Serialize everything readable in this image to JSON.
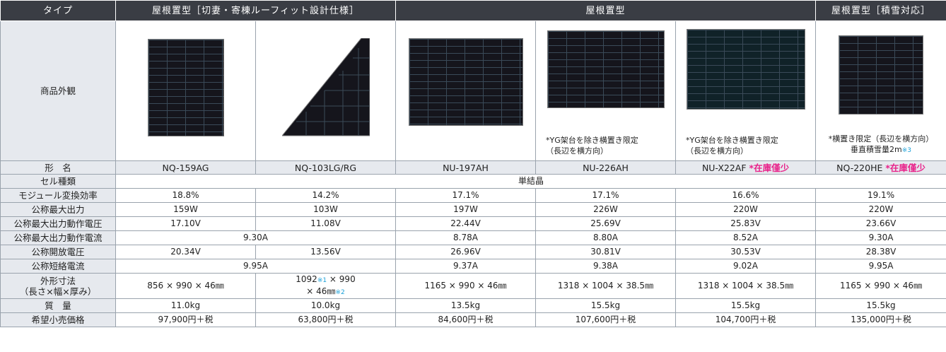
{
  "header": {
    "type_label": "タイプ",
    "group1": "屋根置型［切妻・寄棟ルーフィット設計仕様］",
    "group2": "屋根置型",
    "group3": "屋根置型［積雪対応］"
  },
  "image_row": {
    "label": "商品外観",
    "note_226": [
      "*YG架台を除き横置き限定",
      "（長辺を横方向）"
    ],
    "note_x22": [
      "*YG架台を除き横置き限定",
      "（長辺を横方向）"
    ],
    "note_220": [
      "*横置き限定（長辺を横方向）",
      "垂直積雪量2m",
      "※3"
    ]
  },
  "model_row": {
    "label": "形　名",
    "m1": "NQ-159AG",
    "m2": "NQ-103LG/RG",
    "m3": "NU-197AH",
    "m4": "NU-226AH",
    "m5": "NU-X22AF",
    "m5_badge": "*在庫僅少",
    "m6": "NQ-220HE",
    "m6_badge": "*在庫僅少"
  },
  "rows": {
    "cell": {
      "label": "セル種類",
      "value": "単結晶"
    },
    "eff": {
      "label": "モジュール変換効率",
      "v": [
        "18.8%",
        "14.2%",
        "17.1%",
        "17.1%",
        "16.6%",
        "19.1%"
      ]
    },
    "pmax": {
      "label": "公称最大出力",
      "v": [
        "159W",
        "103W",
        "197W",
        "226W",
        "220W",
        "220W"
      ]
    },
    "vmp": {
      "label": "公称最大出力動作電圧",
      "v": [
        "17.10V",
        "11.08V",
        "22.44V",
        "25.69V",
        "25.83V",
        "23.66V"
      ]
    },
    "imp": {
      "label": "公称最大出力動作電流",
      "merged": "9.30A",
      "v": [
        "8.78A",
        "8.80A",
        "8.52A",
        "9.30A"
      ]
    },
    "voc": {
      "label": "公称開放電圧",
      "v": [
        "20.34V",
        "13.56V",
        "26.96V",
        "30.81V",
        "30.53V",
        "28.38V"
      ]
    },
    "isc": {
      "label": "公称短絡電流",
      "merged": "9.95A",
      "v": [
        "9.37A",
        "9.38A",
        "9.02A",
        "9.95A"
      ]
    },
    "dim": {
      "label1": "外形寸法",
      "label2": "（長さ×幅×厚み）",
      "v1": "856 × 990 × 46㎜",
      "v2a": "1092",
      "v2fn1": "※1",
      "v2b": " × 990",
      "v2c": "× 46㎜",
      "v2fn2": "※2",
      "v3": "1165 × 990 × 46㎜",
      "v4": "1318 × 1004 × 38.5㎜",
      "v5": "1318 × 1004 × 38.5㎜",
      "v6": "1165 × 990 × 46㎜"
    },
    "mass": {
      "label": "質　量",
      "v": [
        "11.0kg",
        "10.0kg",
        "13.5kg",
        "15.5kg",
        "15.5kg",
        "15.5kg"
      ]
    },
    "price": {
      "label": "希望小売価格",
      "v": [
        "97,900円＋税",
        "63,800円＋税",
        "84,600円＋税",
        "107,600円＋税",
        "104,700円＋税",
        "135,000円＋税"
      ]
    }
  },
  "colors": {
    "header_bg": "#3a3d44",
    "row_header_bg": "#e6e9ee",
    "badge": "#e8228a",
    "footnote": "#1aa0d8"
  }
}
